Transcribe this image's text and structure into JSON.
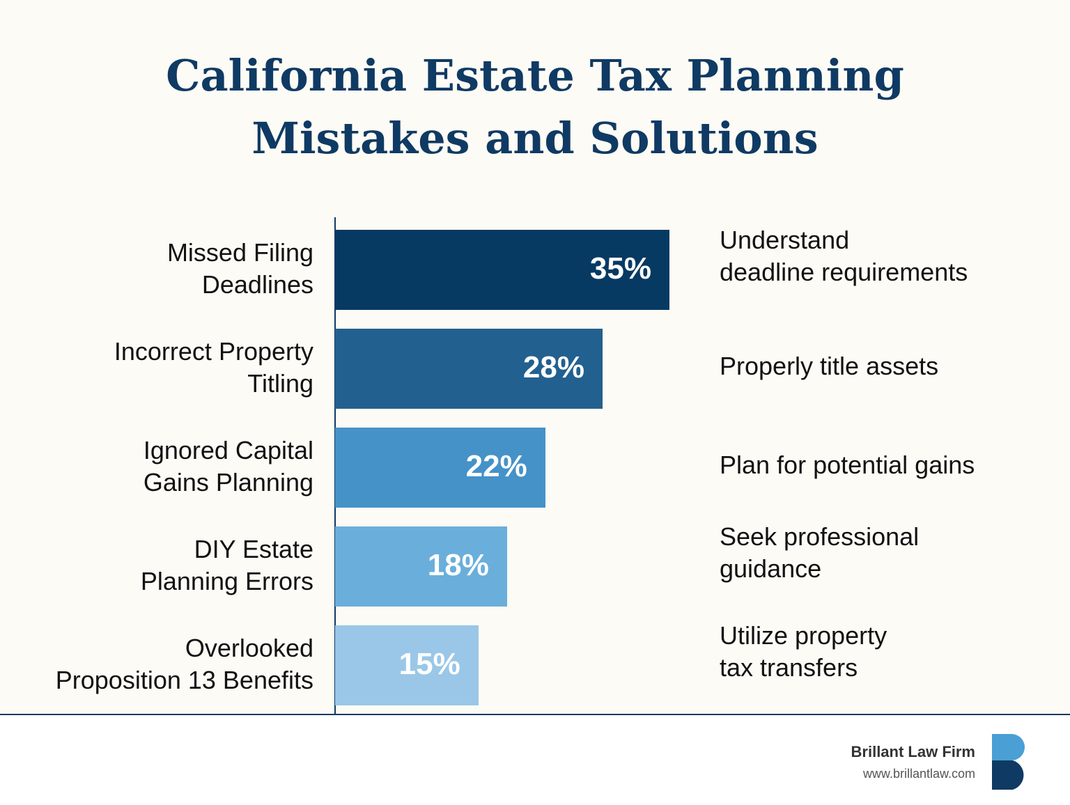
{
  "chart_data": {
    "type": "bar",
    "title": [
      "California Estate Tax Planning",
      "Mistakes and Solutions"
    ],
    "categories": [
      [
        "Missed Filing",
        "Deadlines"
      ],
      [
        "Incorrect Property",
        "Titling"
      ],
      [
        "Ignored Capital",
        "Gains Planning"
      ],
      [
        "DIY Estate",
        "Planning Errors"
      ],
      [
        "Overlooked",
        "Proposition 13 Benefits"
      ]
    ],
    "values": [
      35,
      28,
      22,
      18,
      15
    ],
    "value_labels": [
      "35%",
      "28%",
      "22%",
      "18%",
      "15%"
    ],
    "colors": [
      "#063a63",
      "#22608f",
      "#4592c8",
      "#6aaedb",
      "#9ac7e7"
    ],
    "solutions": [
      [
        "Understand",
        "deadline requirements"
      ],
      [
        "Properly title assets"
      ],
      [
        "Plan for potential gains"
      ],
      [
        "Seek professional",
        "guidance"
      ],
      [
        "Utilize property",
        "tax transfers"
      ]
    ]
  },
  "footer": {
    "firm": "Brillant Law Firm",
    "url": "www.brillantlaw.com"
  }
}
